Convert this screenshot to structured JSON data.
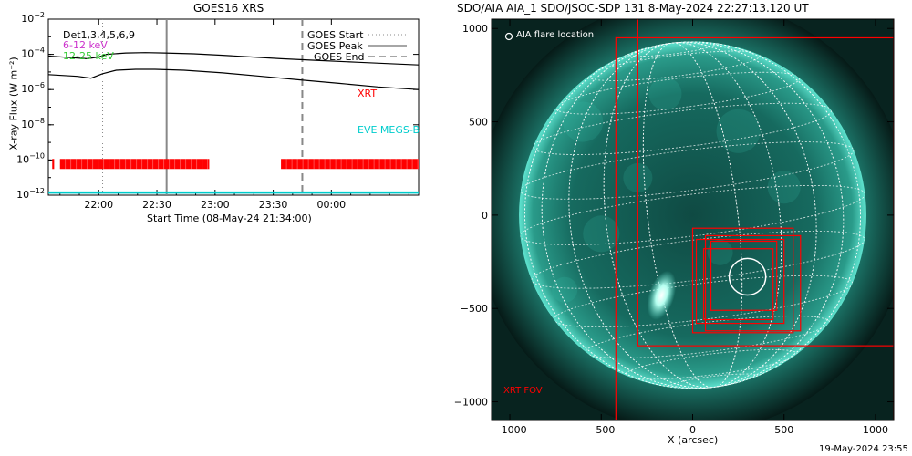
{
  "left_panel": {
    "title": "GOES16 XRS",
    "channels": [
      {
        "label": "Det1,3,4,5,6,9",
        "color": "#000000"
      },
      {
        "label": "6-12 keV",
        "color": "#cc33cc"
      },
      {
        "label": "12-25 keV",
        "color": "#33cc33"
      }
    ],
    "event_legend": [
      {
        "label": "GOES Start",
        "style": "dotted"
      },
      {
        "label": "GOES Peak",
        "style": "solid"
      },
      {
        "label": "GOES End",
        "style": "dashed"
      }
    ],
    "instrument_labels": [
      {
        "label": "XRT",
        "color": "#ff0000"
      },
      {
        "label": "EVE MEGS-B",
        "color": "#00cccc"
      }
    ]
  },
  "right_panel": {
    "title": "SDO/AIA AIA_1 SDO/JSOC-SDP 131  8-May-2024 22:27:13.120 UT",
    "flare_location_label": "AIA flare location",
    "fov_label": "XRT FOV",
    "footer_timestamp": "19-May-2024 23:55"
  },
  "colors": {
    "xrt": "#ff0000",
    "eve": "#00cccc",
    "aia_teal": "#1fb8a6",
    "marker": "#888888"
  },
  "chart_data": [
    {
      "type": "line",
      "title": "GOES16 XRS",
      "xlabel": "Start Time (08-May-24 21:34:00)",
      "ylabel": "X-ray Flux (W m⁻²)",
      "xlim_min": [
        0,
        191
      ],
      "xticks": [
        {
          "label": "22:00",
          "min": 26
        },
        {
          "label": "22:30",
          "min": 56
        },
        {
          "label": "23:00",
          "min": 86
        },
        {
          "label": "23:30",
          "min": 116
        },
        {
          "label": "00:00",
          "min": 146
        }
      ],
      "yscale": "log",
      "ylim_exp": [
        -12,
        -2
      ],
      "yticks_exp": [
        -12,
        -10,
        -8,
        -6,
        -4,
        -2
      ],
      "series": [
        {
          "name": "Det1,3,4,5,6,9 (upper)",
          "x_min": [
            0,
            20,
            26,
            30,
            40,
            50,
            60,
            75,
            90,
            105,
            120,
            140,
            160,
            180,
            191
          ],
          "log_flux": [
            -4.1,
            -4.25,
            -4.15,
            -4.0,
            -3.92,
            -3.9,
            -3.92,
            -3.97,
            -4.05,
            -4.15,
            -4.25,
            -4.35,
            -4.45,
            -4.55,
            -4.6
          ]
        },
        {
          "name": "Det1,3,4,5,6,9 (lower)",
          "x_min": [
            0,
            15,
            22,
            28,
            35,
            45,
            55,
            70,
            90,
            110,
            130,
            150,
            170,
            191
          ],
          "log_flux": [
            -5.15,
            -5.25,
            -5.35,
            -5.1,
            -4.9,
            -4.85,
            -4.85,
            -4.9,
            -5.05,
            -5.25,
            -5.45,
            -5.65,
            -5.85,
            -6.0
          ]
        }
      ],
      "event_markers_min": {
        "goes_start": 28,
        "goes_peak": 61,
        "goes_end": 131
      },
      "xrt_coverage_min": [
        [
          2,
          3
        ],
        [
          6,
          83
        ],
        [
          120,
          191
        ]
      ],
      "xrt_log_level": -10.2,
      "eve_log_level": -11.85
    },
    {
      "type": "scatter",
      "title": "SDO/AIA AIA_1 SDO/JSOC-SDP 131  8-May-2024 22:27:13.120 UT",
      "xlabel": "X (arcsec)",
      "ylabel": "",
      "xlim": [
        -1100,
        1100
      ],
      "ylim": [
        -1100,
        1050
      ],
      "xticks": [
        -1000,
        -500,
        0,
        500,
        1000
      ],
      "yticks": [
        -1000,
        -500,
        0,
        500,
        1000
      ],
      "solar_radius_arcsec": 950,
      "flare_location": {
        "x": 300,
        "y": -330,
        "radius": 100
      },
      "xrt_fov_boxes": [
        [
          -420,
          -1100,
          1100,
          950
        ],
        [
          -300,
          -700,
          1100,
          1100
        ],
        [
          0,
          -630,
          550,
          -70
        ],
        [
          20,
          -580,
          500,
          -130
        ],
        [
          60,
          -560,
          440,
          -180
        ],
        [
          100,
          -510,
          460,
          -140
        ],
        [
          70,
          -620,
          590,
          -110
        ]
      ]
    }
  ]
}
